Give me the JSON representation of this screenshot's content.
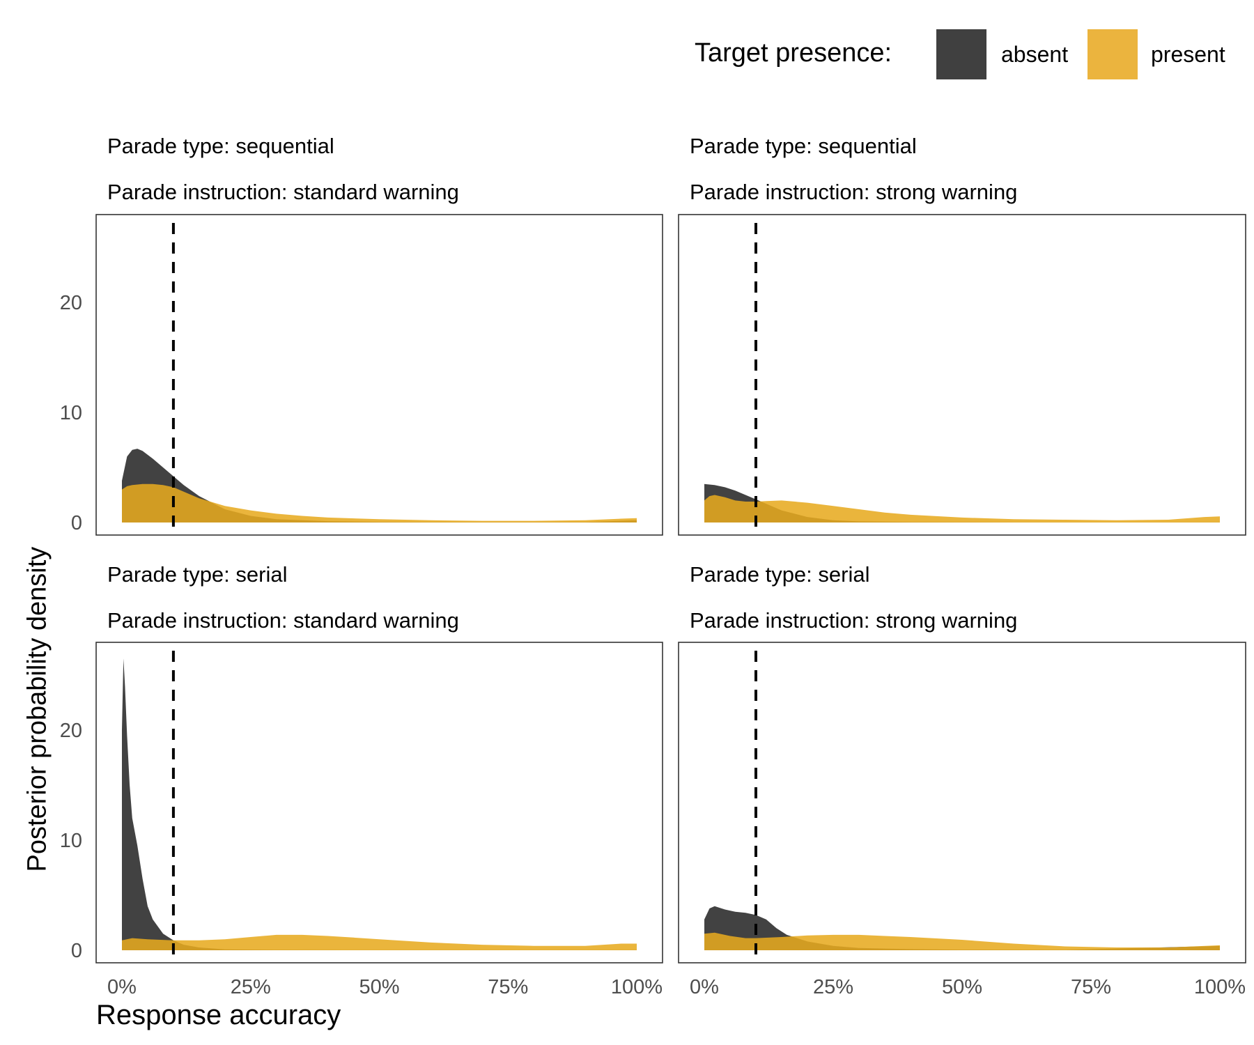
{
  "legend": {
    "title": "Target presence:",
    "items": [
      {
        "label": "absent",
        "color": "#262626"
      },
      {
        "label": "present",
        "color": "#E7AA1F"
      }
    ]
  },
  "axes": {
    "xlabel": "Response accuracy",
    "ylabel": "Posterior probability density"
  },
  "chart_data": [
    {
      "type": "area",
      "strip": [
        "Parade type: sequential",
        "Parade instruction: standard warning"
      ],
      "xlim": [
        0,
        1
      ],
      "ylim": [
        0,
        27
      ],
      "x_ticks": [
        0,
        0.25,
        0.5,
        0.75,
        1
      ],
      "x_tick_labels": [
        "0%",
        "25%",
        "50%",
        "75%",
        "100%"
      ],
      "y_ticks": [
        0,
        10,
        20
      ],
      "y_tick_labels": [
        "0",
        "10",
        "20"
      ],
      "reference_line_x": 0.1,
      "series": [
        {
          "name": "absent",
          "x": [
            0,
            0.01,
            0.02,
            0.03,
            0.04,
            0.06,
            0.08,
            0.1,
            0.12,
            0.15,
            0.2,
            0.25,
            0.3,
            0.4,
            0.5,
            0.6,
            0.7,
            0.8,
            0.9,
            1.0
          ],
          "y": [
            3.8,
            6.0,
            6.6,
            6.7,
            6.5,
            5.8,
            5.0,
            4.2,
            3.4,
            2.4,
            1.2,
            0.6,
            0.3,
            0.12,
            0.06,
            0.04,
            0.03,
            0.03,
            0.04,
            0.2
          ]
        },
        {
          "name": "present",
          "x": [
            0,
            0.01,
            0.02,
            0.04,
            0.06,
            0.08,
            0.1,
            0.12,
            0.15,
            0.2,
            0.25,
            0.3,
            0.35,
            0.4,
            0.5,
            0.6,
            0.7,
            0.8,
            0.9,
            0.97,
            1.0
          ],
          "y": [
            3.0,
            3.3,
            3.4,
            3.5,
            3.5,
            3.4,
            3.2,
            2.8,
            2.2,
            1.5,
            1.1,
            0.8,
            0.6,
            0.45,
            0.3,
            0.2,
            0.15,
            0.15,
            0.2,
            0.35,
            0.4
          ]
        }
      ]
    },
    {
      "type": "area",
      "strip": [
        "Parade type: sequential",
        "Parade instruction: strong warning"
      ],
      "xlim": [
        0,
        1
      ],
      "ylim": [
        0,
        27
      ],
      "x_ticks": [
        0,
        0.25,
        0.5,
        0.75,
        1
      ],
      "x_tick_labels": [
        "0%",
        "25%",
        "50%",
        "75%",
        "100%"
      ],
      "y_ticks": [
        0,
        10,
        20
      ],
      "y_tick_labels": [
        "0",
        "10",
        "20"
      ],
      "reference_line_x": 0.1,
      "series": [
        {
          "name": "absent",
          "x": [
            0,
            0.02,
            0.04,
            0.06,
            0.08,
            0.1,
            0.12,
            0.15,
            0.2,
            0.25,
            0.3,
            0.4,
            0.5,
            0.6,
            0.8,
            1.0
          ],
          "y": [
            3.5,
            3.4,
            3.2,
            2.9,
            2.5,
            2.1,
            1.7,
            1.1,
            0.5,
            0.2,
            0.1,
            0.05,
            0.03,
            0.02,
            0.02,
            0.02
          ]
        },
        {
          "name": "present",
          "x": [
            0,
            0.01,
            0.02,
            0.04,
            0.06,
            0.08,
            0.1,
            0.12,
            0.15,
            0.2,
            0.25,
            0.3,
            0.35,
            0.4,
            0.5,
            0.6,
            0.7,
            0.8,
            0.9,
            0.97,
            1.0
          ],
          "y": [
            2.0,
            2.4,
            2.5,
            2.3,
            2.0,
            1.9,
            1.9,
            1.95,
            2.0,
            1.8,
            1.5,
            1.2,
            0.9,
            0.7,
            0.45,
            0.3,
            0.25,
            0.2,
            0.25,
            0.5,
            0.55
          ]
        }
      ]
    },
    {
      "type": "area",
      "strip": [
        "Parade type: serial",
        "Parade instruction: standard warning"
      ],
      "xlim": [
        0,
        1
      ],
      "ylim": [
        0,
        27
      ],
      "x_ticks": [
        0,
        0.25,
        0.5,
        0.75,
        1
      ],
      "x_tick_labels": [
        "0%",
        "25%",
        "50%",
        "75%",
        "100%"
      ],
      "y_ticks": [
        0,
        10,
        20
      ],
      "y_tick_labels": [
        "0",
        "10",
        "20"
      ],
      "reference_line_x": 0.1,
      "series": [
        {
          "name": "absent",
          "x": [
            0,
            0.003,
            0.006,
            0.01,
            0.015,
            0.02,
            0.03,
            0.04,
            0.05,
            0.06,
            0.08,
            0.1,
            0.12,
            0.15,
            0.2,
            0.3,
            0.5,
            1.0
          ],
          "y": [
            20.0,
            26.5,
            24.0,
            19.5,
            15.0,
            12.0,
            9.5,
            6.5,
            4.0,
            2.8,
            1.5,
            0.9,
            0.5,
            0.25,
            0.08,
            0.03,
            0.01,
            0.01
          ]
        },
        {
          "name": "present",
          "x": [
            0,
            0.02,
            0.05,
            0.1,
            0.15,
            0.2,
            0.25,
            0.3,
            0.35,
            0.4,
            0.45,
            0.5,
            0.6,
            0.7,
            0.8,
            0.9,
            0.97,
            1.0
          ],
          "y": [
            0.9,
            1.1,
            1.0,
            0.9,
            0.9,
            1.0,
            1.2,
            1.4,
            1.4,
            1.3,
            1.15,
            1.0,
            0.7,
            0.5,
            0.4,
            0.4,
            0.6,
            0.6
          ]
        }
      ]
    },
    {
      "type": "area",
      "strip": [
        "Parade type: serial",
        "Parade instruction: strong warning"
      ],
      "xlim": [
        0,
        1
      ],
      "ylim": [
        0,
        27
      ],
      "x_ticks": [
        0,
        0.25,
        0.5,
        0.75,
        1
      ],
      "x_tick_labels": [
        "0%",
        "25%",
        "50%",
        "75%",
        "100%"
      ],
      "y_ticks": [
        0,
        10,
        20
      ],
      "y_tick_labels": [
        "0",
        "10",
        "20"
      ],
      "reference_line_x": 0.1,
      "series": [
        {
          "name": "absent",
          "x": [
            0,
            0.01,
            0.02,
            0.04,
            0.06,
            0.08,
            0.1,
            0.12,
            0.14,
            0.16,
            0.2,
            0.25,
            0.3,
            0.4,
            0.5,
            0.7,
            1.0
          ],
          "y": [
            2.8,
            3.8,
            4.0,
            3.7,
            3.5,
            3.4,
            3.2,
            2.8,
            2.0,
            1.4,
            0.8,
            0.4,
            0.2,
            0.1,
            0.05,
            0.03,
            0.4
          ]
        },
        {
          "name": "present",
          "x": [
            0,
            0.02,
            0.05,
            0.08,
            0.1,
            0.15,
            0.2,
            0.25,
            0.3,
            0.35,
            0.4,
            0.5,
            0.6,
            0.7,
            0.8,
            0.9,
            1.0
          ],
          "y": [
            1.5,
            1.6,
            1.3,
            1.1,
            1.1,
            1.2,
            1.35,
            1.4,
            1.4,
            1.3,
            1.2,
            0.95,
            0.6,
            0.35,
            0.25,
            0.25,
            0.45
          ]
        }
      ]
    }
  ]
}
